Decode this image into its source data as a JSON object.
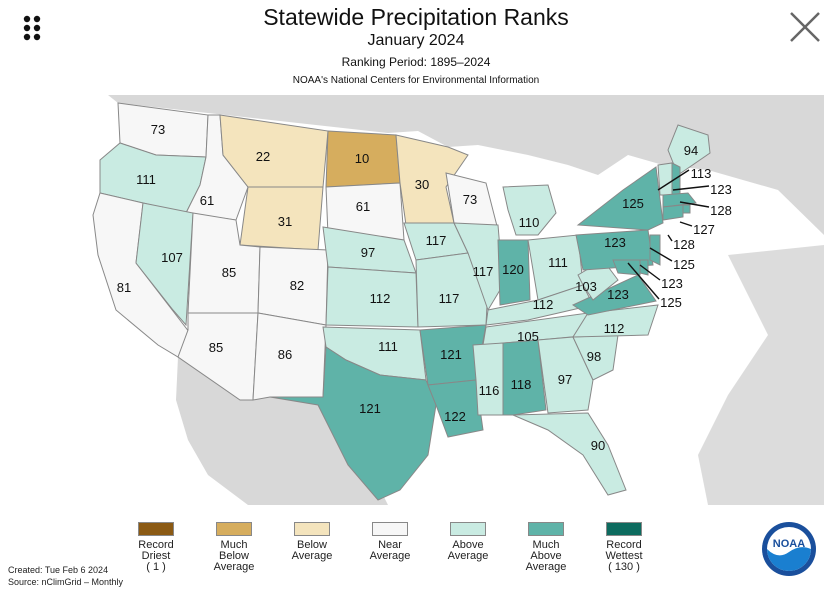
{
  "header": {
    "title": "Statewide Precipitation Ranks",
    "subtitle": "January 2024",
    "period": "Ranking Period: 1895–2024",
    "org": "NOAA's National Centers for Environmental Information"
  },
  "icons": {
    "menu": "grid-dots-icon",
    "close": "close-x-icon",
    "logo": "noaa-logo"
  },
  "colors": {
    "record_driest": "#8b5a14",
    "much_below": "#d6ad5e",
    "below": "#f4e4bd",
    "near": "#f7f7f7",
    "above": "#c9ebe2",
    "much_above": "#5fb3a8",
    "record_wettest": "#0d6b5f",
    "ocean": "#ffffff",
    "land_outside": "#d8d8d8"
  },
  "states": [
    {
      "id": "WA",
      "rank": "73",
      "cat": "near"
    },
    {
      "id": "OR",
      "rank": "111",
      "cat": "above"
    },
    {
      "id": "CA",
      "rank": "81",
      "cat": "near"
    },
    {
      "id": "ID",
      "rank": "61",
      "cat": "near"
    },
    {
      "id": "NV",
      "rank": "107",
      "cat": "above"
    },
    {
      "id": "MT",
      "rank": "22",
      "cat": "below"
    },
    {
      "id": "WY",
      "rank": "31",
      "cat": "below"
    },
    {
      "id": "UT",
      "rank": "85",
      "cat": "near"
    },
    {
      "id": "AZ",
      "rank": "85",
      "cat": "near"
    },
    {
      "id": "CO",
      "rank": "82",
      "cat": "near"
    },
    {
      "id": "NM",
      "rank": "86",
      "cat": "near"
    },
    {
      "id": "ND",
      "rank": "10",
      "cat": "much_below"
    },
    {
      "id": "SD",
      "rank": "61",
      "cat": "near"
    },
    {
      "id": "NE",
      "rank": "97",
      "cat": "above"
    },
    {
      "id": "KS",
      "rank": "112",
      "cat": "above"
    },
    {
      "id": "OK",
      "rank": "111",
      "cat": "above"
    },
    {
      "id": "TX",
      "rank": "121",
      "cat": "much_above"
    },
    {
      "id": "MN",
      "rank": "30",
      "cat": "below"
    },
    {
      "id": "IA",
      "rank": "117",
      "cat": "above"
    },
    {
      "id": "MO",
      "rank": "117",
      "cat": "above"
    },
    {
      "id": "AR",
      "rank": "121",
      "cat": "much_above"
    },
    {
      "id": "LA",
      "rank": "122",
      "cat": "much_above"
    },
    {
      "id": "WI",
      "rank": "73",
      "cat": "near"
    },
    {
      "id": "IL",
      "rank": "117",
      "cat": "above"
    },
    {
      "id": "MI",
      "rank": "110",
      "cat": "above"
    },
    {
      "id": "IN",
      "rank": "120",
      "cat": "much_above"
    },
    {
      "id": "OH",
      "rank": "111",
      "cat": "above"
    },
    {
      "id": "KY",
      "rank": "112",
      "cat": "above"
    },
    {
      "id": "TN",
      "rank": "105",
      "cat": "above"
    },
    {
      "id": "MS",
      "rank": "116",
      "cat": "above"
    },
    {
      "id": "AL",
      "rank": "118",
      "cat": "much_above"
    },
    {
      "id": "GA",
      "rank": "97",
      "cat": "above"
    },
    {
      "id": "FL",
      "rank": "90",
      "cat": "above"
    },
    {
      "id": "SC",
      "rank": "98",
      "cat": "above"
    },
    {
      "id": "NC",
      "rank": "112",
      "cat": "above"
    },
    {
      "id": "VA",
      "rank": "123",
      "cat": "much_above"
    },
    {
      "id": "WV",
      "rank": "103",
      "cat": "above"
    },
    {
      "id": "PA",
      "rank": "123",
      "cat": "much_above"
    },
    {
      "id": "NY",
      "rank": "125",
      "cat": "much_above"
    },
    {
      "id": "ME",
      "rank": "94",
      "cat": "above"
    },
    {
      "id": "NH",
      "rank": "123",
      "cat": "much_above"
    },
    {
      "id": "VT",
      "rank": "113",
      "cat": "above"
    },
    {
      "id": "MA",
      "rank": "128",
      "cat": "much_above"
    },
    {
      "id": "RI",
      "rank": "127",
      "cat": "much_above"
    },
    {
      "id": "CT",
      "rank": "128",
      "cat": "much_above"
    },
    {
      "id": "NJ",
      "rank": "125",
      "cat": "much_above"
    },
    {
      "id": "DE",
      "rank": "123",
      "cat": "much_above"
    },
    {
      "id": "MD",
      "rank": "125",
      "cat": "much_above"
    }
  ],
  "legend": [
    {
      "key": "record_driest",
      "lines": [
        "Record",
        "Driest",
        "( 1 )"
      ]
    },
    {
      "key": "much_below",
      "lines": [
        "Much",
        "Below",
        "Average"
      ]
    },
    {
      "key": "below",
      "lines": [
        "Below",
        "Average"
      ]
    },
    {
      "key": "near",
      "lines": [
        "Near",
        "Average"
      ]
    },
    {
      "key": "above",
      "lines": [
        "Above",
        "Average"
      ]
    },
    {
      "key": "much_above",
      "lines": [
        "Much",
        "Above",
        "Average"
      ]
    },
    {
      "key": "record_wettest",
      "lines": [
        "Record",
        "Wettest",
        "( 130 )"
      ]
    }
  ],
  "meta": {
    "created": "Created: Tue Feb  6 2024",
    "source": "Source: nClimGrid – Monthly"
  },
  "logo_text": "NOAA"
}
